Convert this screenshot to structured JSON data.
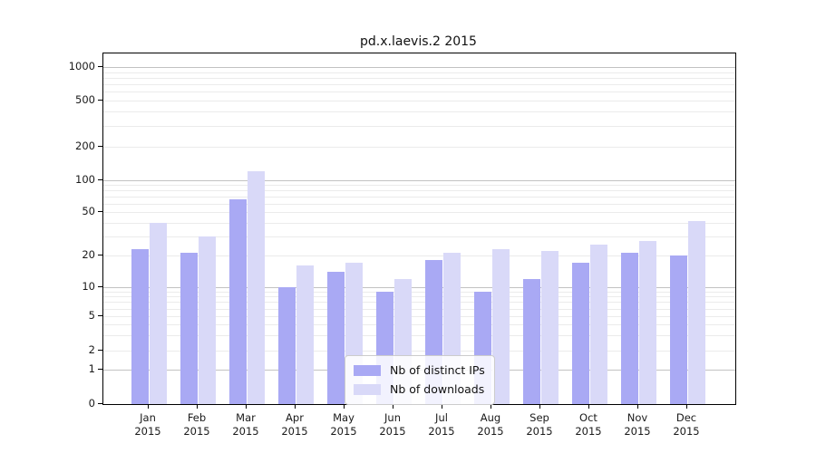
{
  "chart_data": {
    "type": "bar",
    "title": "pd.x.laevis.2 2015",
    "x_axis": {
      "categories": [
        {
          "label": "Jan",
          "sub": "2015"
        },
        {
          "label": "Feb",
          "sub": "2015"
        },
        {
          "label": "Mar",
          "sub": "2015"
        },
        {
          "label": "Apr",
          "sub": "2015"
        },
        {
          "label": "May",
          "sub": "2015"
        },
        {
          "label": "Jun",
          "sub": "2015"
        },
        {
          "label": "Jul",
          "sub": "2015"
        },
        {
          "label": "Aug",
          "sub": "2015"
        },
        {
          "label": "Sep",
          "sub": "2015"
        },
        {
          "label": "Oct",
          "sub": "2015"
        },
        {
          "label": "Nov",
          "sub": "2015"
        },
        {
          "label": "Dec",
          "sub": "2015"
        }
      ]
    },
    "y_axis": {
      "scale": "log-like",
      "ticks": [
        0,
        1,
        2,
        5,
        10,
        20,
        50,
        100,
        200,
        500,
        1000
      ],
      "range": [
        0,
        1300
      ],
      "grid": "horizontal major and minor"
    },
    "series": [
      {
        "name": "Nb of distinct IPs",
        "color": "#a9a9f4",
        "values": [
          23,
          21,
          66,
          10,
          14,
          9,
          18,
          9,
          12,
          17,
          21,
          20
        ]
      },
      {
        "name": "Nb of downloads",
        "color": "#d9d9f8",
        "values": [
          40,
          30,
          120,
          16,
          17,
          12,
          21,
          23,
          22,
          25,
          27,
          41
        ]
      }
    ],
    "legend": {
      "position": "inside-bottom-center",
      "entries": [
        "Nb of distinct IPs",
        "Nb of downloads"
      ]
    },
    "colors": {
      "major_grid": "#c2c2c2",
      "minor_grid": "#ebebeb",
      "axis": "#000000",
      "background": "#ffffff"
    }
  }
}
